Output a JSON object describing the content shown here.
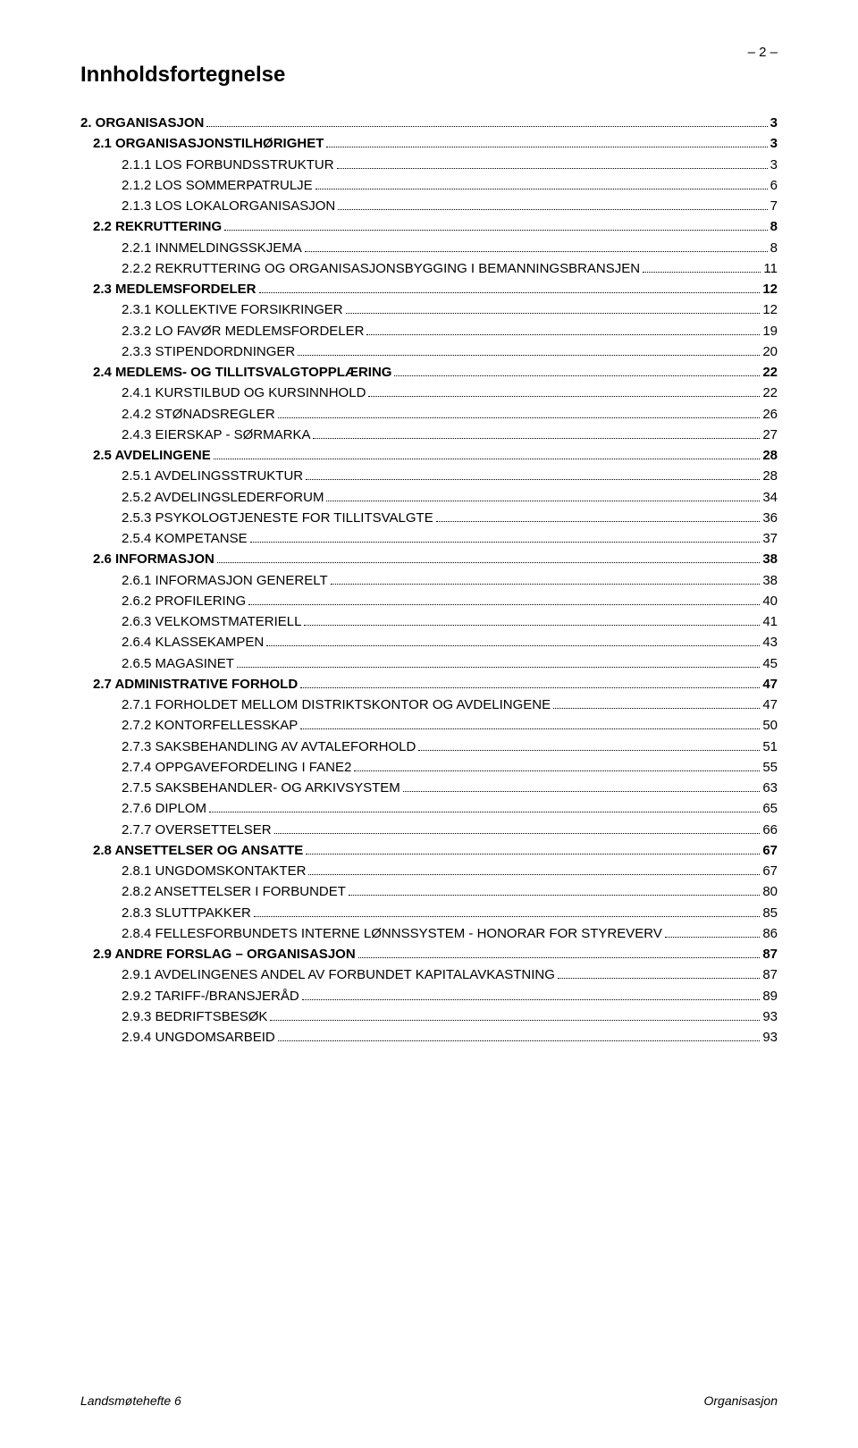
{
  "page_number_display": "– 2 –",
  "title": "Innholdsfortegnelse",
  "footer": {
    "left": "Landsmøtehefte 6",
    "right": "Organisasjon"
  },
  "toc": [
    {
      "level": 1,
      "label": "2. ORGANISASJON",
      "page": "3"
    },
    {
      "level": 2,
      "label": "2.1  ORGANISASJONSTILHØRIGHET",
      "page": "3"
    },
    {
      "level": 3,
      "label": "2.1.1  LOS FORBUNDSSTRUKTUR",
      "page": "3"
    },
    {
      "level": 3,
      "label": "2.1.2  LOS SOMMERPATRULJE",
      "page": "6"
    },
    {
      "level": 3,
      "label": "2.1.3  LOS LOKALORGANISASJON",
      "page": "7"
    },
    {
      "level": 2,
      "label": "2.2  REKRUTTERING",
      "page": "8"
    },
    {
      "level": 3,
      "label": "2.2.1  INNMELDINGSSKJEMA",
      "page": "8"
    },
    {
      "level": 3,
      "label": "2.2.2  REKRUTTERING OG ORGANISASJONSBYGGING I BEMANNINGSBRANSJEN",
      "page": "11"
    },
    {
      "level": 2,
      "label": "2.3  MEDLEMSFORDELER",
      "page": "12"
    },
    {
      "level": 3,
      "label": "2.3.1  KOLLEKTIVE FORSIKRINGER",
      "page": "12"
    },
    {
      "level": 3,
      "label": "2.3.2  LO FAVØR MEDLEMSFORDELER",
      "page": "19"
    },
    {
      "level": 3,
      "label": "2.3.3  STIPENDORDNINGER",
      "page": "20"
    },
    {
      "level": 2,
      "label": "2.4  MEDLEMS- OG TILLITSVALGTOPPLÆRING",
      "page": "22"
    },
    {
      "level": 3,
      "label": "2.4.1  KURSTILBUD OG KURSINNHOLD",
      "page": "22"
    },
    {
      "level": 3,
      "label": "2.4.2  STØNADSREGLER",
      "page": "26"
    },
    {
      "level": 3,
      "label": "2.4.3  EIERSKAP - SØRMARKA",
      "page": "27"
    },
    {
      "level": 2,
      "label": "2.5  AVDELINGENE",
      "page": "28"
    },
    {
      "level": 3,
      "label": "2.5.1  AVDELINGSSTRUKTUR",
      "page": "28"
    },
    {
      "level": 3,
      "label": "2.5.2  AVDELINGSLEDERFORUM",
      "page": "34"
    },
    {
      "level": 3,
      "label": "2.5.3  PSYKOLOGTJENESTE FOR TILLITSVALGTE",
      "page": "36"
    },
    {
      "level": 3,
      "label": "2.5.4  KOMPETANSE",
      "page": "37"
    },
    {
      "level": 2,
      "label": "2.6  INFORMASJON",
      "page": "38"
    },
    {
      "level": 3,
      "label": "2.6.1  INFORMASJON GENERELT",
      "page": "38"
    },
    {
      "level": 3,
      "label": "2.6.2  PROFILERING",
      "page": "40"
    },
    {
      "level": 3,
      "label": "2.6.3  VELKOMSTMATERIELL",
      "page": "41"
    },
    {
      "level": 3,
      "label": "2.6.4  KLASSEKAMPEN",
      "page": "43"
    },
    {
      "level": 3,
      "label": "2.6.5  MAGASINET",
      "page": "45"
    },
    {
      "level": 2,
      "label": "2.7  ADMINISTRATIVE FORHOLD",
      "page": "47"
    },
    {
      "level": 3,
      "label": "2.7.1  FORHOLDET MELLOM DISTRIKTSKONTOR OG AVDELINGENE",
      "page": "47"
    },
    {
      "level": 3,
      "label": "2.7.2  KONTORFELLESSKAP",
      "page": "50"
    },
    {
      "level": 3,
      "label": "2.7.3  SAKSBEHANDLING AV AVTALEFORHOLD",
      "page": "51"
    },
    {
      "level": 3,
      "label": "2.7.4  OPPGAVEFORDELING I FANE2",
      "page": "55"
    },
    {
      "level": 3,
      "label": "2.7.5  SAKSBEHANDLER- OG ARKIVSYSTEM",
      "page": "63"
    },
    {
      "level": 3,
      "label": "2.7.6  DIPLOM",
      "page": "65"
    },
    {
      "level": 3,
      "label": "2.7.7  OVERSETTELSER",
      "page": "66"
    },
    {
      "level": 2,
      "label": "2.8  ANSETTELSER OG ANSATTE",
      "page": "67"
    },
    {
      "level": 3,
      "label": "2.8.1  UNGDOMSKONTAKTER",
      "page": "67"
    },
    {
      "level": 3,
      "label": "2.8.2  ANSETTELSER I FORBUNDET",
      "page": "80"
    },
    {
      "level": 3,
      "label": "2.8.3  SLUTTPAKKER",
      "page": "85"
    },
    {
      "level": 3,
      "label": "2.8.4  FELLESFORBUNDETS INTERNE LØNNSSYSTEM - HONORAR FOR STYREVERV",
      "page": "86"
    },
    {
      "level": 2,
      "label": "2.9  ANDRE FORSLAG – ORGANISASJON",
      "page": "87"
    },
    {
      "level": 3,
      "label": "2.9.1  AVDELINGENES ANDEL AV FORBUNDET KAPITALAVKASTNING",
      "page": "87"
    },
    {
      "level": 3,
      "label": "2.9.2  TARIFF-/BRANSJERÅD",
      "page": "89"
    },
    {
      "level": 3,
      "label": "2.9.3  BEDRIFTSBESØK",
      "page": "93"
    },
    {
      "level": 3,
      "label": "2.9.4  UNGDOMSARBEID",
      "page": "93"
    }
  ]
}
